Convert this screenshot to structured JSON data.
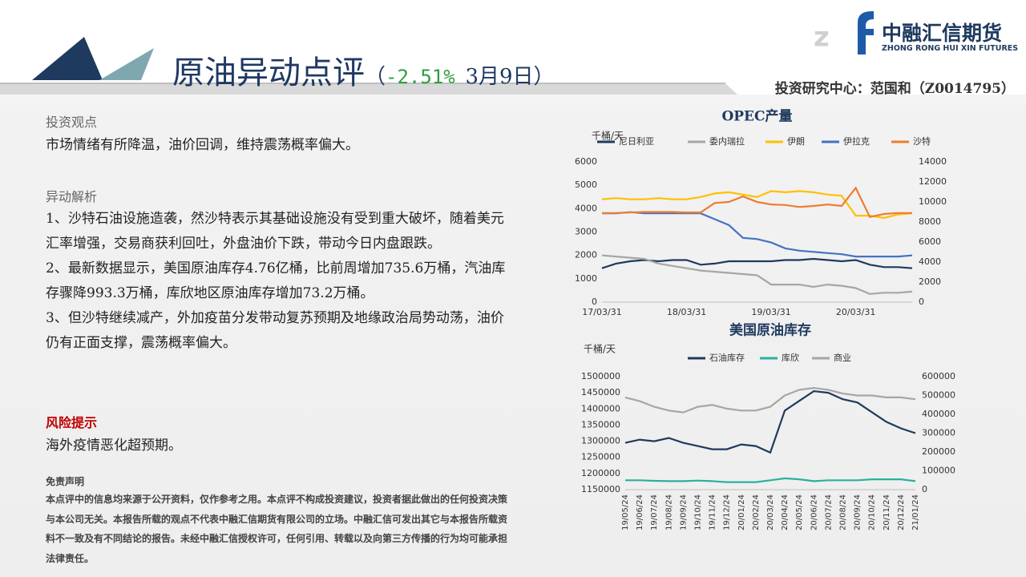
{
  "header": {
    "title": "原油异动点评",
    "paren_left": "（",
    "change": "-2.51%",
    "date": "3月9日",
    "paren_right": "）"
  },
  "logo": {
    "name": "中融汇信期货",
    "english": "ZHONG RONG HUI XIN FUTURES"
  },
  "author": "投资研究中心：范国和（Z0014795）",
  "view": {
    "heading": "投资观点",
    "text": "市场情绪有所降温，油价回调，维持震荡概率偏大。"
  },
  "analysis": {
    "heading": "异动解析",
    "paragraphs": [
      "1、沙特石油设施造袭，然沙特表示其基础设施没有受到重大破坏，随着美元汇率增强，交易商获利回吐，外盘油价下跌，带动今日内盘跟跌。",
      "2、最新数据显示，美国原油库存4.76亿桶，比前周增加735.6万桶，汽油库存骤降993.3万桶，库欣地区原油库存增加73.2万桶。",
      "3、但沙特继续减产，外加疫苗分发带动复苏预期及地缘政治局势动荡，油价仍有正面支撑，震荡概率偏大。"
    ]
  },
  "risk": {
    "heading": "风险提示",
    "text": "海外疫情恶化超预期。"
  },
  "disclaimer": {
    "heading": "免责声明",
    "text": "本点评中的信息均来源于公开资料，仅作参考之用。本点评不构成投资建议，投资者据此做出的任何投资决策与本公司无关。本报告所载的观点不代表中融汇信期货有限公司的立场。中融汇信可发出其它与本报告所载资料不一致及有不同结论的报告。未经中融汇信授权许可，任何引用、转载以及向第三方传播的行为均可能承担法律责任。"
  },
  "chart_data": [
    {
      "type": "line",
      "title": "OPEC产量",
      "y_label": "千桶/天",
      "categories": [
        "17/03/31",
        null,
        null,
        null,
        null,
        null,
        "18/03/31",
        null,
        null,
        null,
        null,
        null,
        "19/03/31",
        null,
        null,
        null,
        null,
        null,
        "20/03/31",
        null,
        null,
        null,
        null
      ],
      "ylim": [
        0,
        6000
      ],
      "yticks": [
        0,
        1000,
        2000,
        3000,
        4000,
        5000,
        6000
      ],
      "y2lim": [
        0,
        14000
      ],
      "y2ticks": [
        0,
        2000,
        4000,
        6000,
        8000,
        10000,
        12000,
        14000
      ],
      "series": [
        {
          "name": "尼日利亚",
          "color": "#1f3a5f",
          "values": [
            1450,
            1650,
            1750,
            1800,
            1750,
            1800,
            1800,
            1600,
            1650,
            1750,
            1750,
            1750,
            1750,
            1800,
            1800,
            1850,
            1800,
            1750,
            1800,
            1600,
            1500,
            1500,
            1450
          ]
        },
        {
          "name": "委内瑞拉",
          "color": "#a6a6a6",
          "values": [
            2000,
            1950,
            1900,
            1850,
            1650,
            1550,
            1450,
            1350,
            1300,
            1250,
            1200,
            1150,
            750,
            750,
            750,
            650,
            750,
            700,
            600,
            350,
            400,
            400,
            450
          ]
        },
        {
          "name": "伊朗",
          "color": "#ffc000",
          "values": [
            4400,
            4450,
            4400,
            4400,
            4450,
            4400,
            4400,
            4500,
            4650,
            4700,
            4600,
            4500,
            4750,
            4700,
            4750,
            4700,
            4600,
            4550,
            3700,
            3700,
            3600,
            3750,
            3800
          ]
        },
        {
          "name": "伊拉克",
          "color": "#4472c4",
          "values": [
            3800,
            3800,
            3850,
            3800,
            3800,
            3800,
            3800,
            3800,
            3550,
            3300,
            2750,
            2700,
            2550,
            2300,
            2200,
            2150,
            2100,
            2050,
            1950,
            1950,
            1950,
            1950,
            2000
          ]
        },
        {
          "name": "沙特",
          "color": "#ed7d31",
          "axis": "y2",
          "values": [
            8900,
            8900,
            8950,
            9000,
            9000,
            9000,
            8950,
            8950,
            9900,
            10000,
            10550,
            10000,
            9750,
            9700,
            9500,
            9600,
            9750,
            9600,
            11400,
            8500,
            8800,
            8900,
            8900
          ]
        }
      ]
    },
    {
      "type": "line",
      "title": "美国原油库存",
      "y_label": "千桶/天",
      "categories": [
        "19/05/24",
        "19/06/24",
        "19/07/24",
        "19/08/24",
        "19/09/24",
        "19/10/24",
        "19/11/24",
        "19/12/24",
        "20/01/24",
        "20/02/24",
        "20/03/24",
        "20/04/24",
        "20/05/24",
        "20/06/24",
        "20/07/24",
        "20/08/24",
        "20/09/24",
        "20/10/24",
        "20/11/24",
        "20/12/24",
        "21/01/24"
      ],
      "ylim": [
        1150000,
        1500000
      ],
      "yticks": [
        1150000,
        1200000,
        1250000,
        1300000,
        1350000,
        1400000,
        1450000,
        1500000
      ],
      "y2lim": [
        0,
        600000
      ],
      "y2ticks": [
        0,
        100000,
        200000,
        300000,
        400000,
        500000,
        600000
      ],
      "series": [
        {
          "name": "石油库存",
          "color": "#1f3a5f",
          "values": [
            1295000,
            1305000,
            1300000,
            1310000,
            1295000,
            1285000,
            1275000,
            1275000,
            1290000,
            1285000,
            1265000,
            1395000,
            1425000,
            1455000,
            1450000,
            1430000,
            1420000,
            1390000,
            1360000,
            1340000,
            1325000
          ]
        },
        {
          "name": "库欣",
          "color": "#2ab0a0",
          "axis": "y2",
          "values": [
            50000,
            50000,
            47000,
            45000,
            45000,
            48000,
            45000,
            40000,
            40000,
            40000,
            50000,
            60000,
            55000,
            45000,
            50000,
            50000,
            50000,
            55000,
            55000,
            55000,
            45000
          ]
        },
        {
          "name": "商业",
          "color": "#a6a6a6",
          "axis": "y2",
          "values": [
            490000,
            470000,
            440000,
            420000,
            410000,
            440000,
            450000,
            430000,
            420000,
            420000,
            440000,
            500000,
            530000,
            540000,
            530000,
            510000,
            500000,
            500000,
            490000,
            490000,
            480000
          ]
        }
      ]
    }
  ]
}
